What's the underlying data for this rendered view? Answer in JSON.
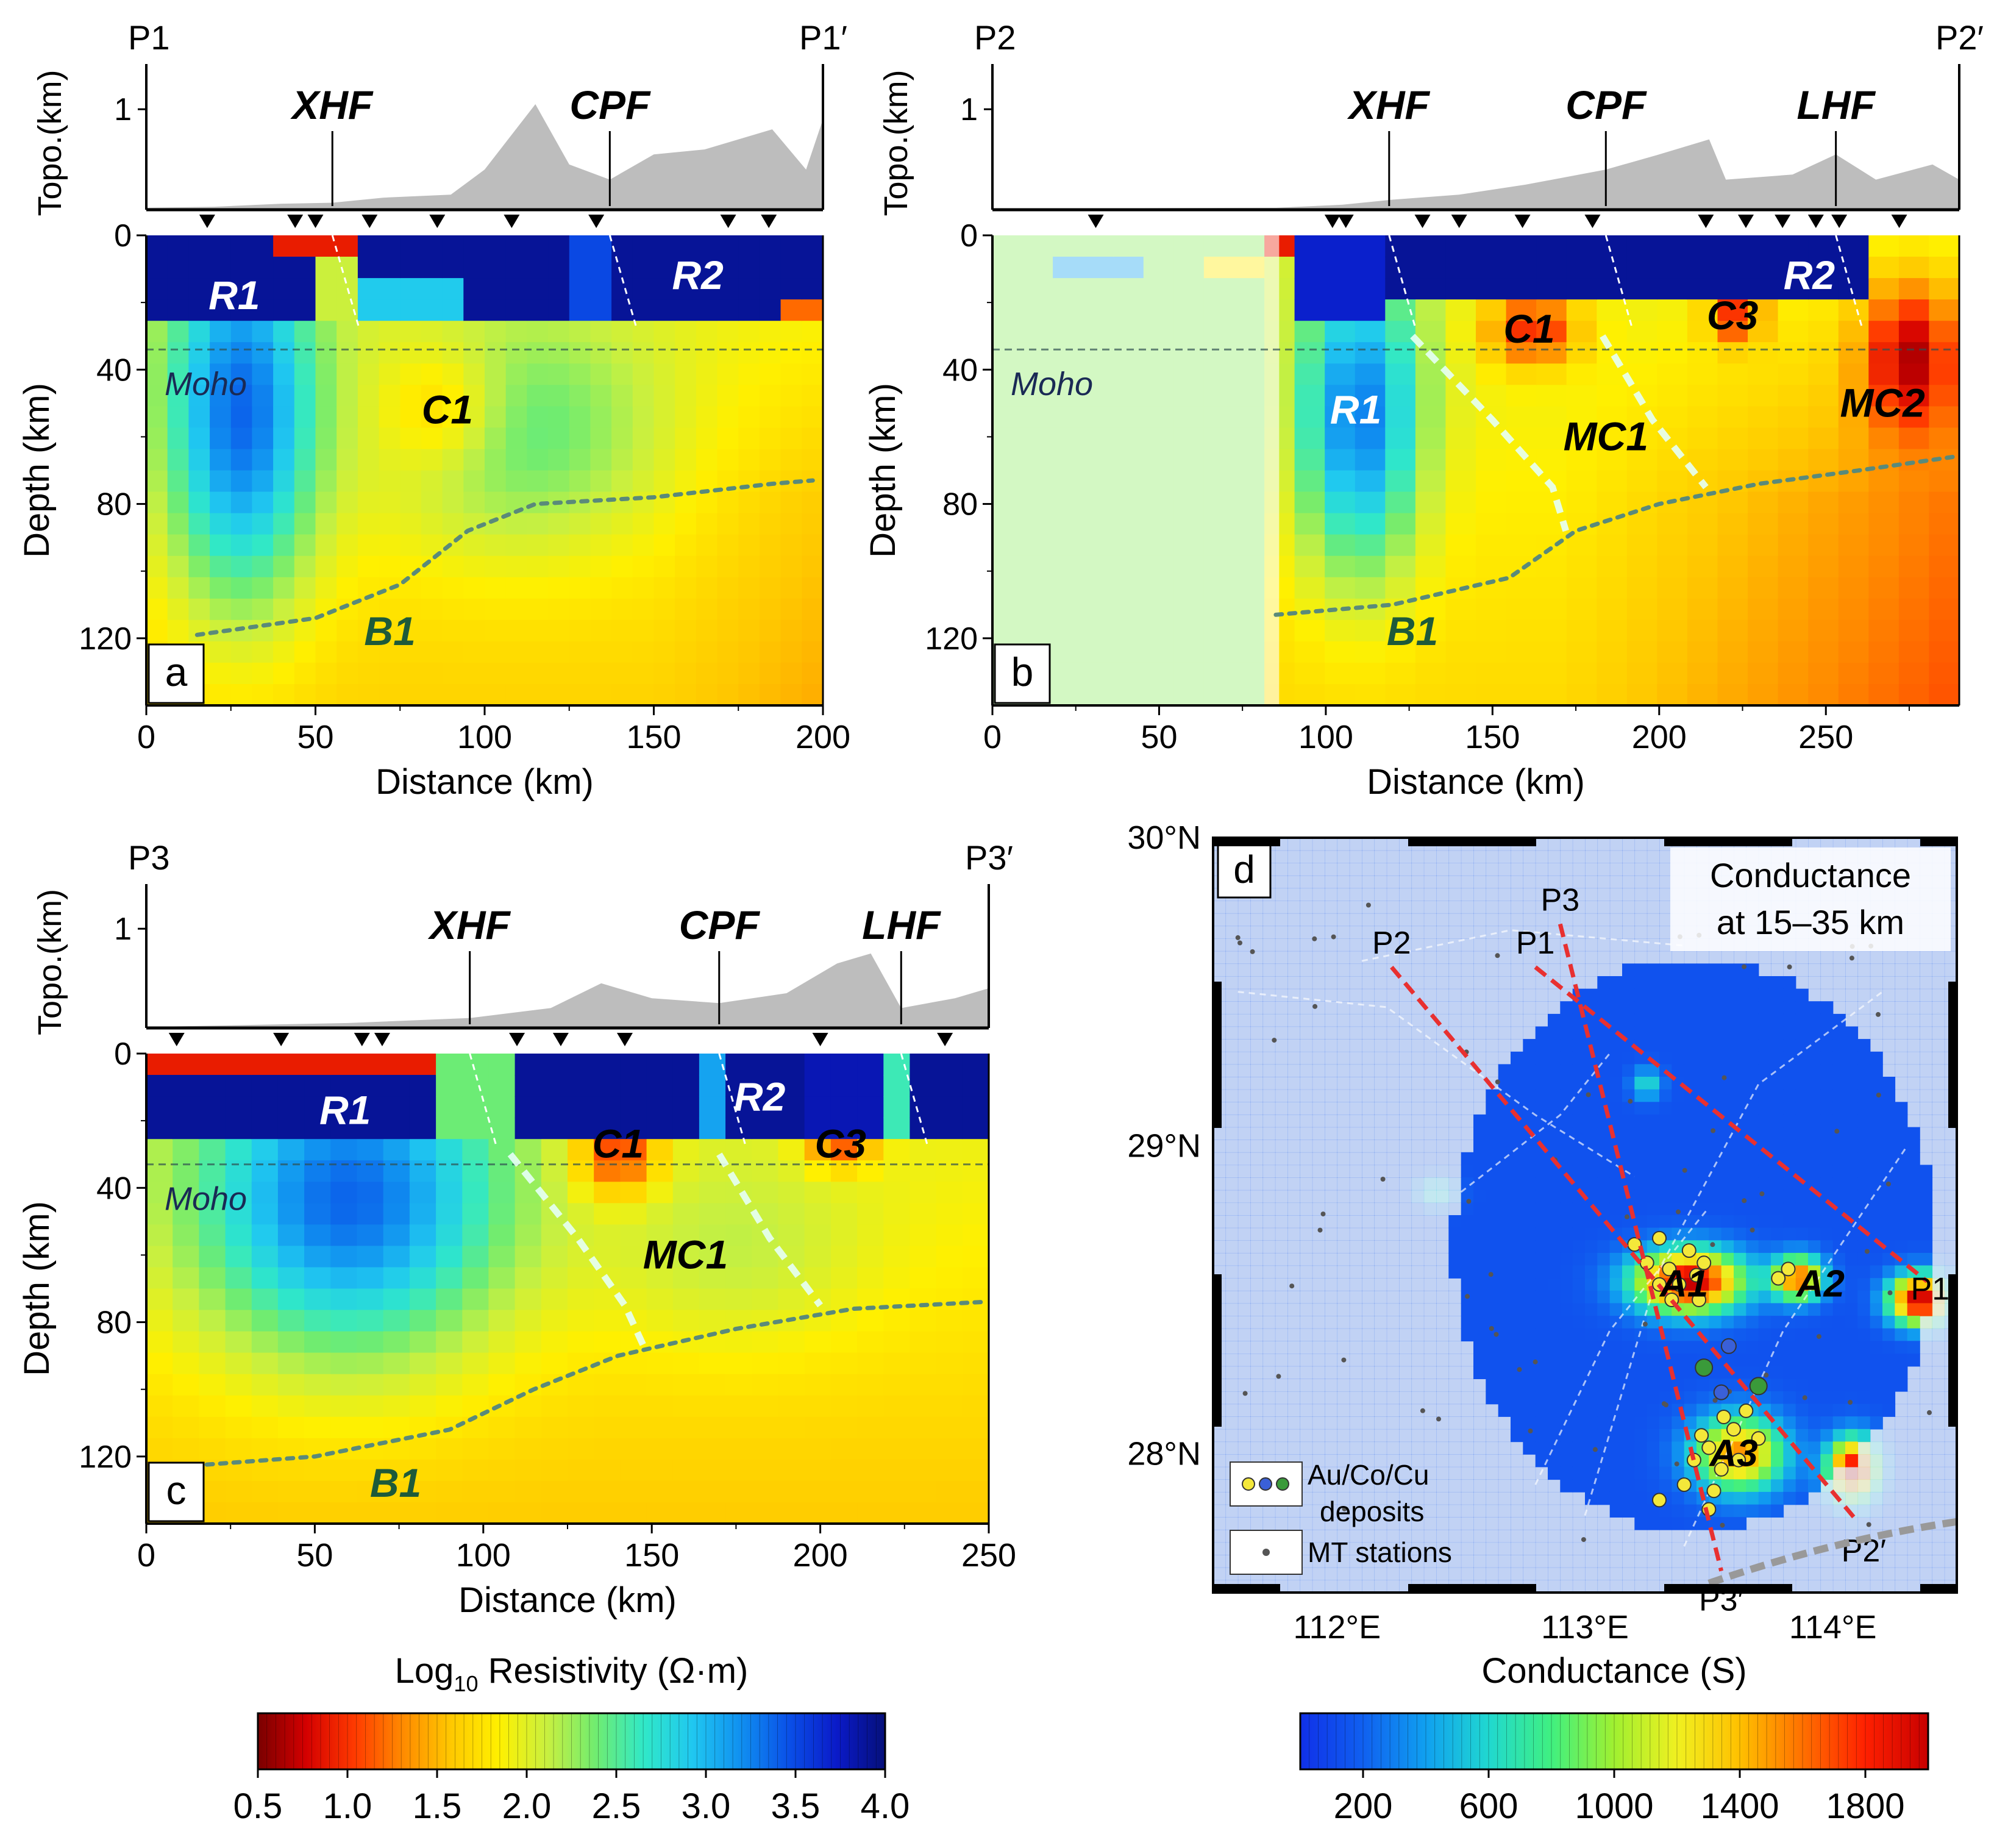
{
  "colors": {
    "resistivity_scale": [
      "#7a0000",
      "#d40000",
      "#ff3a00",
      "#ff8a00",
      "#ffc800",
      "#fff000",
      "#c8f040",
      "#70ec70",
      "#30e8c8",
      "#20c8f0",
      "#1090f0",
      "#0a50e8",
      "#0a1ac8",
      "#06107a"
    ],
    "conductance_scale": [
      "#1030e8",
      "#1060f0",
      "#10a0f0",
      "#20d8d0",
      "#40f080",
      "#a0f030",
      "#f0f020",
      "#ffc000",
      "#ff7000",
      "#ff2000",
      "#c80000"
    ],
    "topo_fill": "#bdbdbd",
    "boundary_line": "#5a8a7a",
    "profile_line": "#e83030",
    "deposit_yellow": "#f4e83a",
    "deposit_blue": "#3a60d8",
    "deposit_green": "#3a9a3a"
  },
  "chart_data": [
    {
      "type": "heatmap",
      "panel": "a",
      "profile_start": "P1",
      "profile_end": "P1′",
      "topo_label": "Topo.(km)",
      "topo_tick": "1",
      "faults": [
        {
          "name": "XHF",
          "x": 55
        },
        {
          "name": "CPF",
          "x": 137
        }
      ],
      "stations": [
        18,
        44,
        50,
        66,
        86,
        108,
        133,
        172,
        184
      ],
      "topo_profile": [
        [
          0,
          0.02
        ],
        [
          20,
          0.03
        ],
        [
          40,
          0.06
        ],
        [
          55,
          0.07
        ],
        [
          70,
          0.12
        ],
        [
          90,
          0.15
        ],
        [
          100,
          0.4
        ],
        [
          115,
          1.05
        ],
        [
          125,
          0.45
        ],
        [
          137,
          0.3
        ],
        [
          150,
          0.55
        ],
        [
          165,
          0.6
        ],
        [
          185,
          0.8
        ],
        [
          195,
          0.4
        ],
        [
          200,
          0.9
        ]
      ],
      "xlim": [
        0,
        200
      ],
      "ylim": [
        0,
        140
      ],
      "xticks": [
        "0",
        "50",
        "100",
        "150",
        "200"
      ],
      "yticks": [
        "0",
        "40",
        "80",
        "120"
      ],
      "xlabel": "Distance (km)",
      "ylabel": "Depth (km)",
      "moho_depth": 34,
      "moho_label": "Moho",
      "anomalies": [
        {
          "label": "R1",
          "x": 26,
          "y": 18,
          "kind": "resistor"
        },
        {
          "label": "R2",
          "x": 163,
          "y": 12,
          "kind": "resistor"
        },
        {
          "label": "C1",
          "x": 89,
          "y": 52,
          "kind": "conductor"
        },
        {
          "label": "B1",
          "x": 72,
          "y": 118,
          "kind": "boundary"
        }
      ],
      "b1_curve": [
        [
          15,
          119
        ],
        [
          50,
          114
        ],
        [
          75,
          104
        ],
        [
          95,
          88
        ],
        [
          115,
          80
        ],
        [
          150,
          78
        ],
        [
          185,
          74
        ],
        [
          197,
          73
        ]
      ]
    },
    {
      "type": "heatmap",
      "panel": "b",
      "profile_start": "P2",
      "profile_end": "P2′",
      "topo_label": "Topo.(km)",
      "topo_tick": "1",
      "faults": [
        {
          "name": "XHF",
          "x": 119
        },
        {
          "name": "CPF",
          "x": 184
        },
        {
          "name": "LHF",
          "x": 253
        }
      ],
      "stations": [
        31,
        102,
        106,
        129,
        140,
        159,
        180,
        214,
        226,
        237,
        247,
        254,
        272
      ],
      "topo_profile": [
        [
          0,
          0.01
        ],
        [
          85,
          0.02
        ],
        [
          105,
          0.05
        ],
        [
          120,
          0.1
        ],
        [
          140,
          0.15
        ],
        [
          160,
          0.25
        ],
        [
          184,
          0.4
        ],
        [
          200,
          0.55
        ],
        [
          215,
          0.7
        ],
        [
          220,
          0.3
        ],
        [
          240,
          0.35
        ],
        [
          253,
          0.55
        ],
        [
          265,
          0.3
        ],
        [
          282,
          0.45
        ],
        [
          290,
          0.3
        ]
      ],
      "xlim": [
        0,
        290
      ],
      "ylim": [
        0,
        140
      ],
      "xticks": [
        "0",
        "50",
        "100",
        "150",
        "200",
        "250"
      ],
      "yticks": [
        "0",
        "40",
        "80",
        "120"
      ],
      "xlabel": "Distance (km)",
      "ylabel": "Depth (km)",
      "moho_depth": 34,
      "moho_label": "Moho",
      "anomalies": [
        {
          "label": "R1",
          "x": 109,
          "y": 52,
          "kind": "resistor"
        },
        {
          "label": "R2",
          "x": 245,
          "y": 12,
          "kind": "resistor"
        },
        {
          "label": "C1",
          "x": 161,
          "y": 28,
          "kind": "conductor"
        },
        {
          "label": "C3",
          "x": 222,
          "y": 24,
          "kind": "conductor"
        },
        {
          "label": "MC1",
          "x": 184,
          "y": 60,
          "kind": "conductor"
        },
        {
          "label": "MC2",
          "x": 267,
          "y": 50,
          "kind": "conductor"
        },
        {
          "label": "B1",
          "x": 126,
          "y": 118,
          "kind": "boundary"
        }
      ],
      "b1_curve": [
        [
          85,
          113
        ],
        [
          120,
          110
        ],
        [
          155,
          102
        ],
        [
          175,
          88
        ],
        [
          200,
          80
        ],
        [
          230,
          74
        ],
        [
          260,
          70
        ],
        [
          288,
          66
        ]
      ]
    },
    {
      "type": "heatmap",
      "panel": "c",
      "profile_start": "P3",
      "profile_end": "P3′",
      "topo_label": "Topo.(km)",
      "topo_tick": "1",
      "faults": [
        {
          "name": "XHF",
          "x": 96
        },
        {
          "name": "CPF",
          "x": 170
        },
        {
          "name": "LHF",
          "x": 224
        }
      ],
      "stations": [
        9,
        40,
        64,
        70,
        110,
        123,
        142,
        200,
        237
      ],
      "topo_profile": [
        [
          0,
          0.01
        ],
        [
          60,
          0.05
        ],
        [
          96,
          0.1
        ],
        [
          120,
          0.2
        ],
        [
          135,
          0.45
        ],
        [
          150,
          0.3
        ],
        [
          170,
          0.25
        ],
        [
          190,
          0.35
        ],
        [
          205,
          0.65
        ],
        [
          215,
          0.75
        ],
        [
          224,
          0.2
        ],
        [
          240,
          0.3
        ],
        [
          250,
          0.4
        ]
      ],
      "xlim": [
        0,
        250
      ],
      "ylim": [
        0,
        140
      ],
      "xticks": [
        "0",
        "50",
        "100",
        "150",
        "200",
        "250"
      ],
      "yticks": [
        "0",
        "40",
        "80",
        "120"
      ],
      "xlabel": "Distance (km)",
      "ylabel": "Depth (km)",
      "moho_depth": 33,
      "moho_label": "Moho",
      "anomalies": [
        {
          "label": "R1",
          "x": 59,
          "y": 17,
          "kind": "resistor"
        },
        {
          "label": "R2",
          "x": 182,
          "y": 13,
          "kind": "resistor"
        },
        {
          "label": "C1",
          "x": 140,
          "y": 27,
          "kind": "conductor"
        },
        {
          "label": "C3",
          "x": 206,
          "y": 27,
          "kind": "conductor"
        },
        {
          "label": "MC1",
          "x": 160,
          "y": 60,
          "kind": "conductor"
        },
        {
          "label": "B1",
          "x": 74,
          "y": 128,
          "kind": "boundary"
        }
      ],
      "b1_curve": [
        [
          10,
          123
        ],
        [
          50,
          120
        ],
        [
          90,
          112
        ],
        [
          115,
          100
        ],
        [
          140,
          90
        ],
        [
          175,
          82
        ],
        [
          210,
          76
        ],
        [
          248,
          74
        ]
      ]
    },
    {
      "type": "heatmap",
      "panel": "d",
      "title": "Conductance\nat 15–35 km",
      "title_lines": [
        "Conductance",
        "at 15–35 km"
      ],
      "xlim": [
        111.5,
        114.5
      ],
      "ylim": [
        27.55,
        30.0
      ],
      "xticks": [
        "112°E",
        "113°E",
        "114°E"
      ],
      "xtick_values": [
        112,
        113,
        114
      ],
      "yticks": [
        "30°N",
        "29°N",
        "28°N"
      ],
      "ytick_values": [
        30,
        29,
        28
      ],
      "profiles": [
        {
          "name": "P1",
          "start": [
            112.8,
            29.58
          ],
          "end": [
            114.38,
            28.56
          ],
          "end_label": "P1′"
        },
        {
          "name": "P2",
          "start": [
            112.22,
            29.58
          ],
          "end": [
            114.1,
            27.78
          ],
          "end_label": "P2′"
        },
        {
          "name": "P3",
          "start": [
            112.9,
            29.72
          ],
          "end": [
            113.55,
            27.62
          ],
          "end_label": "P3′"
        }
      ],
      "anomalies": [
        {
          "label": "A1",
          "lon": 113.4,
          "lat": 28.55
        },
        {
          "label": "A2",
          "lon": 113.95,
          "lat": 28.55
        },
        {
          "label": "A3",
          "lon": 113.6,
          "lat": 28.0
        }
      ],
      "legend": {
        "deposits": "Au/Co/Cu\ndeposits",
        "deposits_lines": [
          "Au/Co/Cu",
          "deposits"
        ],
        "stations": "MT stations"
      }
    }
  ],
  "colorbars": {
    "resistivity": {
      "label": "Log10 Resistivity (Ω·m)",
      "label_main": "Log",
      "label_sub": "10",
      "label_rest": " Resistivity (Ω·m)",
      "ticks": [
        "0.5",
        "1.0",
        "1.5",
        "2.0",
        "2.5",
        "3.0",
        "3.5",
        "4.0"
      ]
    },
    "conductance": {
      "label": "Conductance (S)",
      "ticks": [
        "200",
        "600",
        "1000",
        "1400",
        "1800"
      ],
      "range": [
        0,
        2000
      ]
    }
  }
}
